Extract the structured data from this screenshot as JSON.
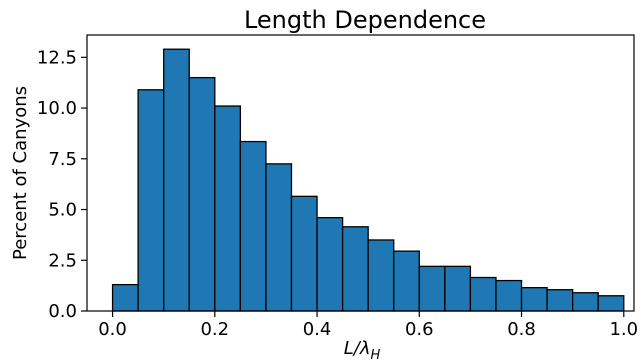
{
  "chart_data": {
    "type": "bar",
    "title": "Length Dependence",
    "ylabel": "Percent of Canyons",
    "xlabel_main": "L/λ",
    "xlabel_sub": "H",
    "xlim": [
      -0.05,
      1.02
    ],
    "ylim": [
      0,
      13.6
    ],
    "xticks": [
      {
        "value": 0.0,
        "label": "0.0"
      },
      {
        "value": 0.2,
        "label": "0.2"
      },
      {
        "value": 0.4,
        "label": "0.4"
      },
      {
        "value": 0.6,
        "label": "0.6"
      },
      {
        "value": 0.8,
        "label": "0.8"
      },
      {
        "value": 1.0,
        "label": "1.0"
      }
    ],
    "yticks": [
      {
        "value": 0.0,
        "label": "0.0"
      },
      {
        "value": 2.5,
        "label": "2.5"
      },
      {
        "value": 5.0,
        "label": "5.0"
      },
      {
        "value": 7.5,
        "label": "7.5"
      },
      {
        "value": 10.0,
        "label": "10.0"
      },
      {
        "value": 12.5,
        "label": "12.5"
      }
    ],
    "bin_edges": [
      0.0,
      0.05,
      0.1,
      0.15,
      0.2,
      0.25,
      0.3,
      0.35,
      0.4,
      0.45,
      0.5,
      0.55,
      0.6,
      0.65,
      0.7,
      0.75,
      0.8,
      0.85,
      0.9,
      0.95,
      1.0
    ],
    "values": [
      1.3,
      10.9,
      12.9,
      11.5,
      10.1,
      8.35,
      7.25,
      5.65,
      4.6,
      4.15,
      3.5,
      2.95,
      2.2,
      2.2,
      1.65,
      1.5,
      1.15,
      1.05,
      0.9,
      0.75
    ],
    "color": "#1f77b4",
    "edge_color": "#000000",
    "grid": false
  }
}
